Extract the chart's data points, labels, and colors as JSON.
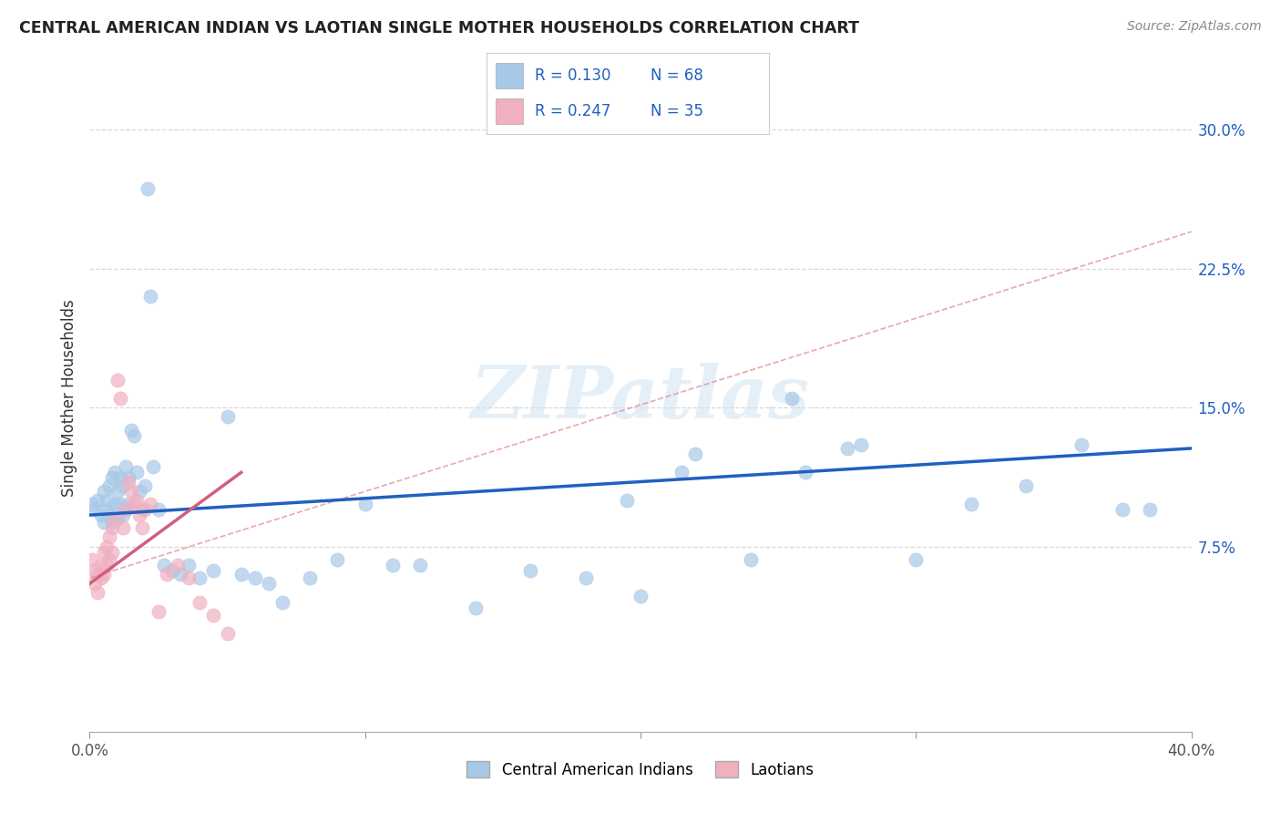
{
  "title": "CENTRAL AMERICAN INDIAN VS LAOTIAN SINGLE MOTHER HOUSEHOLDS CORRELATION CHART",
  "source": "Source: ZipAtlas.com",
  "ylabel": "Single Mother Households",
  "xlim": [
    0.0,
    0.4
  ],
  "ylim": [
    -0.02,
    0.34
  ],
  "plot_ylim": [
    0.0,
    0.32
  ],
  "yticks": [
    0.075,
    0.15,
    0.225,
    0.3
  ],
  "ytick_labels": [
    "7.5%",
    "15.0%",
    "22.5%",
    "30.0%"
  ],
  "xticks": [
    0.0,
    0.1,
    0.2,
    0.3,
    0.4
  ],
  "xtick_labels": [
    "0.0%",
    "",
    "",
    "",
    "40.0%"
  ],
  "blue_color": "#a8c8e8",
  "pink_color": "#f0b0c0",
  "blue_line_color": "#2060c0",
  "pink_line_color": "#d06080",
  "dashed_line_color": "#e08090",
  "grid_color": "#d8d8d8",
  "watermark": "ZIPatlas",
  "legend_R_blue": "0.130",
  "legend_N_blue": "68",
  "legend_R_pink": "0.247",
  "legend_N_pink": "35",
  "legend_label_blue": "Central American Indians",
  "legend_label_pink": "Laotians",
  "blue_scatter_x": [
    0.001,
    0.002,
    0.003,
    0.004,
    0.005,
    0.005,
    0.006,
    0.006,
    0.007,
    0.007,
    0.008,
    0.008,
    0.009,
    0.009,
    0.01,
    0.01,
    0.011,
    0.011,
    0.012,
    0.012,
    0.013,
    0.013,
    0.014,
    0.014,
    0.015,
    0.016,
    0.017,
    0.018,
    0.019,
    0.02,
    0.021,
    0.022,
    0.023,
    0.025,
    0.027,
    0.03,
    0.033,
    0.036,
    0.04,
    0.045,
    0.05,
    0.055,
    0.06,
    0.065,
    0.07,
    0.08,
    0.09,
    0.1,
    0.11,
    0.12,
    0.14,
    0.16,
    0.18,
    0.2,
    0.22,
    0.24,
    0.26,
    0.28,
    0.3,
    0.32,
    0.34,
    0.36,
    0.375,
    0.385,
    0.255,
    0.275,
    0.215,
    0.195
  ],
  "blue_scatter_y": [
    0.098,
    0.095,
    0.1,
    0.092,
    0.105,
    0.088,
    0.1,
    0.095,
    0.108,
    0.092,
    0.112,
    0.088,
    0.115,
    0.098,
    0.105,
    0.09,
    0.112,
    0.098,
    0.108,
    0.092,
    0.118,
    0.095,
    0.112,
    0.098,
    0.138,
    0.135,
    0.115,
    0.105,
    0.095,
    0.108,
    0.268,
    0.21,
    0.118,
    0.095,
    0.065,
    0.062,
    0.06,
    0.065,
    0.058,
    0.062,
    0.145,
    0.06,
    0.058,
    0.055,
    0.045,
    0.058,
    0.068,
    0.098,
    0.065,
    0.065,
    0.042,
    0.062,
    0.058,
    0.048,
    0.125,
    0.068,
    0.115,
    0.13,
    0.068,
    0.098,
    0.108,
    0.13,
    0.095,
    0.095,
    0.155,
    0.128,
    0.115,
    0.1
  ],
  "pink_scatter_x": [
    0.001,
    0.002,
    0.002,
    0.003,
    0.003,
    0.004,
    0.004,
    0.005,
    0.005,
    0.006,
    0.006,
    0.007,
    0.007,
    0.008,
    0.008,
    0.009,
    0.01,
    0.011,
    0.012,
    0.013,
    0.014,
    0.015,
    0.016,
    0.017,
    0.018,
    0.019,
    0.02,
    0.022,
    0.025,
    0.028,
    0.032,
    0.036,
    0.04,
    0.045,
    0.05
  ],
  "pink_scatter_y": [
    0.068,
    0.062,
    0.055,
    0.06,
    0.05,
    0.065,
    0.058,
    0.072,
    0.06,
    0.075,
    0.065,
    0.08,
    0.068,
    0.085,
    0.072,
    0.09,
    0.165,
    0.155,
    0.085,
    0.095,
    0.11,
    0.105,
    0.098,
    0.1,
    0.092,
    0.085,
    0.095,
    0.098,
    0.04,
    0.06,
    0.065,
    0.058,
    0.045,
    0.038,
    0.028
  ],
  "blue_trend_x": [
    0.0,
    0.4
  ],
  "blue_trend_y": [
    0.092,
    0.128
  ],
  "pink_trend_x": [
    0.0,
    0.055
  ],
  "pink_trend_y": [
    0.055,
    0.115
  ],
  "dashed_trend_x": [
    0.0,
    0.4
  ],
  "dashed_trend_y": [
    0.058,
    0.245
  ]
}
